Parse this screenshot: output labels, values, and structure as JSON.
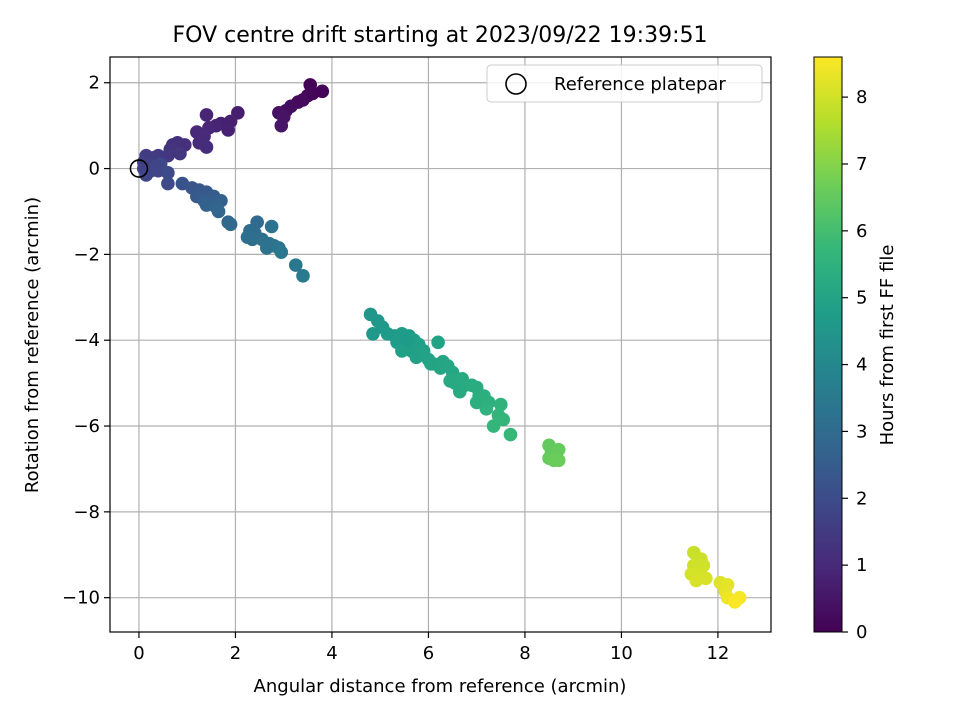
{
  "chart_data": {
    "type": "scatter",
    "title": "FOV centre drift starting at 2023/09/22 19:39:51",
    "xlabel": "Angular distance from reference (arcmin)",
    "ylabel": "Rotation from reference (arcmin)",
    "xlim": [
      -0.6,
      13.1
    ],
    "ylim": [
      -10.8,
      2.6
    ],
    "x_ticks": [
      0,
      2,
      4,
      6,
      8,
      10,
      12
    ],
    "y_ticks": [
      2,
      0,
      -2,
      -4,
      -6,
      -8,
      -10
    ],
    "x_tick_labels": [
      "0",
      "2",
      "4",
      "6",
      "8",
      "10",
      "12"
    ],
    "y_tick_labels": [
      "2",
      "0",
      "−2",
      "−4",
      "−6",
      "−8",
      "−10"
    ],
    "grid": true,
    "legend": {
      "position": "top-right",
      "label": "Reference platepar",
      "marker": "open-circle"
    },
    "reference_point": {
      "x": 0,
      "y": 0
    },
    "colorbar": {
      "label": "Hours from first FF file",
      "range": [
        0,
        8.6
      ],
      "ticks": [
        0,
        1,
        2,
        3,
        4,
        5,
        6,
        7,
        8
      ],
      "tick_labels": [
        "0",
        "1",
        "2",
        "3",
        "4",
        "5",
        "6",
        "7",
        "8"
      ],
      "colormap": "viridis",
      "colormap_stops": [
        "#440154",
        "#482878",
        "#3e4989",
        "#31688e",
        "#26828e",
        "#1f9e89",
        "#35b779",
        "#6ece58",
        "#b5de2b",
        "#fde725"
      ]
    },
    "points": [
      {
        "x": 3.55,
        "y": 1.95,
        "h": 0.05
      },
      {
        "x": 3.8,
        "y": 1.8,
        "h": 0.1
      },
      {
        "x": 3.5,
        "y": 1.7,
        "h": 0.15
      },
      {
        "x": 3.3,
        "y": 1.55,
        "h": 0.2
      },
      {
        "x": 3.4,
        "y": 1.6,
        "h": 0.22
      },
      {
        "x": 3.15,
        "y": 1.45,
        "h": 0.3
      },
      {
        "x": 3.05,
        "y": 1.35,
        "h": 0.35
      },
      {
        "x": 2.9,
        "y": 1.3,
        "h": 0.4
      },
      {
        "x": 3.0,
        "y": 1.2,
        "h": 0.45
      },
      {
        "x": 2.95,
        "y": 1.0,
        "h": 0.5
      },
      {
        "x": 3.6,
        "y": 1.75,
        "h": 0.12
      },
      {
        "x": 2.05,
        "y": 1.3,
        "h": 0.7
      },
      {
        "x": 1.9,
        "y": 1.1,
        "h": 0.75
      },
      {
        "x": 1.7,
        "y": 1.05,
        "h": 0.78
      },
      {
        "x": 1.85,
        "y": 0.9,
        "h": 0.8
      },
      {
        "x": 1.6,
        "y": 1.0,
        "h": 0.85
      },
      {
        "x": 1.4,
        "y": 1.25,
        "h": 0.9
      },
      {
        "x": 1.45,
        "y": 0.95,
        "h": 0.92
      },
      {
        "x": 1.2,
        "y": 0.85,
        "h": 0.95
      },
      {
        "x": 1.35,
        "y": 0.75,
        "h": 1.0
      },
      {
        "x": 1.25,
        "y": 0.6,
        "h": 1.05
      },
      {
        "x": 1.4,
        "y": 0.5,
        "h": 1.1
      },
      {
        "x": 0.95,
        "y": 0.55,
        "h": 1.15
      },
      {
        "x": 0.8,
        "y": 0.6,
        "h": 1.2
      },
      {
        "x": 0.7,
        "y": 0.55,
        "h": 1.25
      },
      {
        "x": 0.65,
        "y": 0.45,
        "h": 1.3
      },
      {
        "x": 0.85,
        "y": 0.35,
        "h": 1.35
      },
      {
        "x": 0.6,
        "y": 0.3,
        "h": 1.4
      },
      {
        "x": 0.4,
        "y": 0.3,
        "h": 1.45
      },
      {
        "x": 0.3,
        "y": 0.25,
        "h": 1.5
      },
      {
        "x": 0.15,
        "y": 0.3,
        "h": 1.55
      },
      {
        "x": 0.1,
        "y": 0.15,
        "h": 1.6
      },
      {
        "x": 0.2,
        "y": 0.1,
        "h": 1.65
      },
      {
        "x": 0.1,
        "y": 0.0,
        "h": 1.7
      },
      {
        "x": 0.25,
        "y": -0.05,
        "h": 1.75
      },
      {
        "x": 0.15,
        "y": -0.15,
        "h": 1.8
      },
      {
        "x": 0.4,
        "y": -0.05,
        "h": 1.85
      },
      {
        "x": 0.45,
        "y": 0.1,
        "h": 1.9
      },
      {
        "x": 0.6,
        "y": -0.1,
        "h": 1.95
      },
      {
        "x": 0.6,
        "y": -0.35,
        "h": 2.0
      },
      {
        "x": 0.35,
        "y": 0.05,
        "h": 1.8
      },
      {
        "x": 0.9,
        "y": -0.35,
        "h": 2.2
      },
      {
        "x": 1.1,
        "y": -0.45,
        "h": 2.3
      },
      {
        "x": 1.25,
        "y": -0.5,
        "h": 2.35
      },
      {
        "x": 1.4,
        "y": -0.55,
        "h": 2.4
      },
      {
        "x": 1.2,
        "y": -0.65,
        "h": 2.45
      },
      {
        "x": 1.55,
        "y": -0.65,
        "h": 2.5
      },
      {
        "x": 1.35,
        "y": -0.75,
        "h": 2.55
      },
      {
        "x": 1.5,
        "y": -0.8,
        "h": 2.6
      },
      {
        "x": 1.7,
        "y": -0.75,
        "h": 2.65
      },
      {
        "x": 1.4,
        "y": -0.85,
        "h": 2.7
      },
      {
        "x": 1.6,
        "y": -0.9,
        "h": 2.75
      },
      {
        "x": 1.65,
        "y": -1.0,
        "h": 2.8
      },
      {
        "x": 1.85,
        "y": -1.25,
        "h": 2.85
      },
      {
        "x": 1.9,
        "y": -1.3,
        "h": 2.9
      },
      {
        "x": 2.45,
        "y": -1.25,
        "h": 2.95
      },
      {
        "x": 2.3,
        "y": -1.45,
        "h": 3.0
      },
      {
        "x": 2.4,
        "y": -1.5,
        "h": 3.05
      },
      {
        "x": 2.25,
        "y": -1.6,
        "h": 3.1
      },
      {
        "x": 2.35,
        "y": -1.65,
        "h": 3.12
      },
      {
        "x": 2.55,
        "y": -1.65,
        "h": 3.15
      },
      {
        "x": 2.7,
        "y": -1.75,
        "h": 3.2
      },
      {
        "x": 2.75,
        "y": -1.35,
        "h": 3.22
      },
      {
        "x": 2.8,
        "y": -1.8,
        "h": 3.25
      },
      {
        "x": 2.65,
        "y": -1.85,
        "h": 3.3
      },
      {
        "x": 2.9,
        "y": -1.85,
        "h": 3.35
      },
      {
        "x": 2.95,
        "y": -1.95,
        "h": 3.4
      },
      {
        "x": 3.25,
        "y": -2.25,
        "h": 3.45
      },
      {
        "x": 3.4,
        "y": -2.5,
        "h": 3.5
      },
      {
        "x": 4.8,
        "y": -3.4,
        "h": 4.5
      },
      {
        "x": 4.95,
        "y": -3.55,
        "h": 4.55
      },
      {
        "x": 5.05,
        "y": -3.7,
        "h": 4.6
      },
      {
        "x": 4.85,
        "y": -3.85,
        "h": 4.6
      },
      {
        "x": 5.15,
        "y": -3.85,
        "h": 4.65
      },
      {
        "x": 5.3,
        "y": -3.9,
        "h": 4.65
      },
      {
        "x": 5.45,
        "y": -3.85,
        "h": 4.7
      },
      {
        "x": 5.6,
        "y": -3.9,
        "h": 4.7
      },
      {
        "x": 5.35,
        "y": -4.05,
        "h": 4.75
      },
      {
        "x": 5.5,
        "y": -4.1,
        "h": 4.75
      },
      {
        "x": 5.7,
        "y": -4.0,
        "h": 4.8
      },
      {
        "x": 5.8,
        "y": -4.1,
        "h": 4.8
      },
      {
        "x": 5.45,
        "y": -4.25,
        "h": 4.85
      },
      {
        "x": 5.65,
        "y": -4.25,
        "h": 4.85
      },
      {
        "x": 5.9,
        "y": -4.25,
        "h": 4.9
      },
      {
        "x": 5.75,
        "y": -4.4,
        "h": 4.9
      },
      {
        "x": 6.0,
        "y": -4.45,
        "h": 4.95
      },
      {
        "x": 6.2,
        "y": -4.05,
        "h": 4.95
      },
      {
        "x": 6.1,
        "y": -4.55,
        "h": 5.0
      },
      {
        "x": 6.3,
        "y": -4.5,
        "h": 5.0
      },
      {
        "x": 6.25,
        "y": -4.65,
        "h": 5.05
      },
      {
        "x": 6.4,
        "y": -4.6,
        "h": 5.1
      },
      {
        "x": 6.5,
        "y": -4.75,
        "h": 5.1
      },
      {
        "x": 6.45,
        "y": -4.95,
        "h": 5.15
      },
      {
        "x": 6.6,
        "y": -4.95,
        "h": 5.2
      },
      {
        "x": 6.7,
        "y": -4.9,
        "h": 5.2
      },
      {
        "x": 6.75,
        "y": -5.05,
        "h": 5.25
      },
      {
        "x": 6.65,
        "y": -5.2,
        "h": 5.25
      },
      {
        "x": 6.9,
        "y": -5.05,
        "h": 5.3
      },
      {
        "x": 7.0,
        "y": -5.1,
        "h": 5.3
      },
      {
        "x": 7.05,
        "y": -5.3,
        "h": 5.35
      },
      {
        "x": 7.15,
        "y": -5.3,
        "h": 5.4
      },
      {
        "x": 7.0,
        "y": -5.45,
        "h": 5.4
      },
      {
        "x": 7.25,
        "y": -5.45,
        "h": 5.45
      },
      {
        "x": 7.2,
        "y": -5.6,
        "h": 5.5
      },
      {
        "x": 7.5,
        "y": -5.5,
        "h": 5.55
      },
      {
        "x": 7.45,
        "y": -5.75,
        "h": 5.6
      },
      {
        "x": 7.55,
        "y": -5.85,
        "h": 5.65
      },
      {
        "x": 7.35,
        "y": -6.0,
        "h": 5.7
      },
      {
        "x": 7.7,
        "y": -6.2,
        "h": 5.75
      },
      {
        "x": 5.55,
        "y": -4.0,
        "h": 4.72
      },
      {
        "x": 5.9,
        "y": -4.35,
        "h": 4.92
      },
      {
        "x": 6.05,
        "y": -4.55,
        "h": 5.0
      },
      {
        "x": 6.55,
        "y": -5.0,
        "h": 5.18
      },
      {
        "x": 8.5,
        "y": -6.45,
        "h": 6.5
      },
      {
        "x": 8.55,
        "y": -6.6,
        "h": 6.5
      },
      {
        "x": 8.7,
        "y": -6.55,
        "h": 6.55
      },
      {
        "x": 8.5,
        "y": -6.75,
        "h": 6.55
      },
      {
        "x": 8.6,
        "y": -6.8,
        "h": 6.6
      },
      {
        "x": 8.7,
        "y": -6.8,
        "h": 6.6
      },
      {
        "x": 11.5,
        "y": -8.95,
        "h": 7.9
      },
      {
        "x": 11.65,
        "y": -9.1,
        "h": 7.95
      },
      {
        "x": 11.5,
        "y": -9.25,
        "h": 8.0
      },
      {
        "x": 11.7,
        "y": -9.25,
        "h": 8.0
      },
      {
        "x": 11.45,
        "y": -9.45,
        "h": 8.05
      },
      {
        "x": 11.6,
        "y": -9.5,
        "h": 8.05
      },
      {
        "x": 11.75,
        "y": -9.55,
        "h": 8.1
      },
      {
        "x": 11.55,
        "y": -9.6,
        "h": 8.1
      },
      {
        "x": 12.05,
        "y": -9.65,
        "h": 8.2
      },
      {
        "x": 12.2,
        "y": -9.7,
        "h": 8.25
      },
      {
        "x": 12.15,
        "y": -9.85,
        "h": 8.3
      },
      {
        "x": 12.2,
        "y": -10.0,
        "h": 8.4
      },
      {
        "x": 12.45,
        "y": -10.0,
        "h": 8.5
      },
      {
        "x": 12.35,
        "y": -10.1,
        "h": 8.55
      }
    ]
  }
}
